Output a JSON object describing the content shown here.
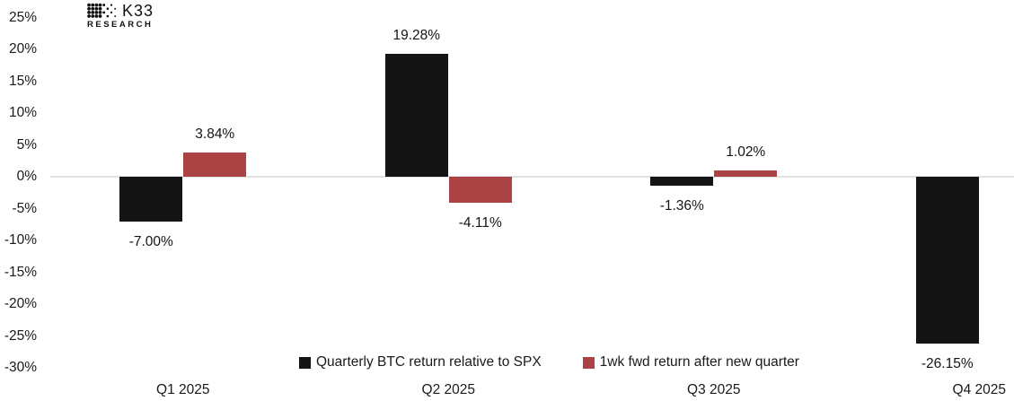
{
  "logo": {
    "brand": "K33",
    "sub": "RESEARCH"
  },
  "chart_data": {
    "type": "bar",
    "title": "",
    "categories": [
      "Q1 2025",
      "Q2 2025",
      "Q3 2025",
      "Q4 2025"
    ],
    "series": [
      {
        "name": "Quarterly BTC return relative to SPX",
        "color": "#141414",
        "values": [
          -7.0,
          19.28,
          -1.36,
          -26.15
        ],
        "labels": [
          "-7.00%",
          "19.28%",
          "-1.36%",
          "-26.15%"
        ]
      },
      {
        "name": "1wk fwd return after new quarter",
        "color": "#ab4344",
        "values": [
          3.84,
          -4.11,
          1.02,
          null
        ],
        "labels": [
          "3.84%",
          "-4.11%",
          "1.02%",
          null
        ]
      }
    ],
    "y_axis": {
      "min": -30,
      "max": 25,
      "step": 5,
      "tick_labels": [
        "25%",
        "20%",
        "15%",
        "10%",
        "5%",
        "0%",
        "-5%",
        "-10%",
        "-15%",
        "-20%",
        "-25%",
        "-30%"
      ]
    },
    "grid": "zero-line-only",
    "zero_line_color": "#e2e2e2",
    "legend_position": "bottom-center"
  }
}
